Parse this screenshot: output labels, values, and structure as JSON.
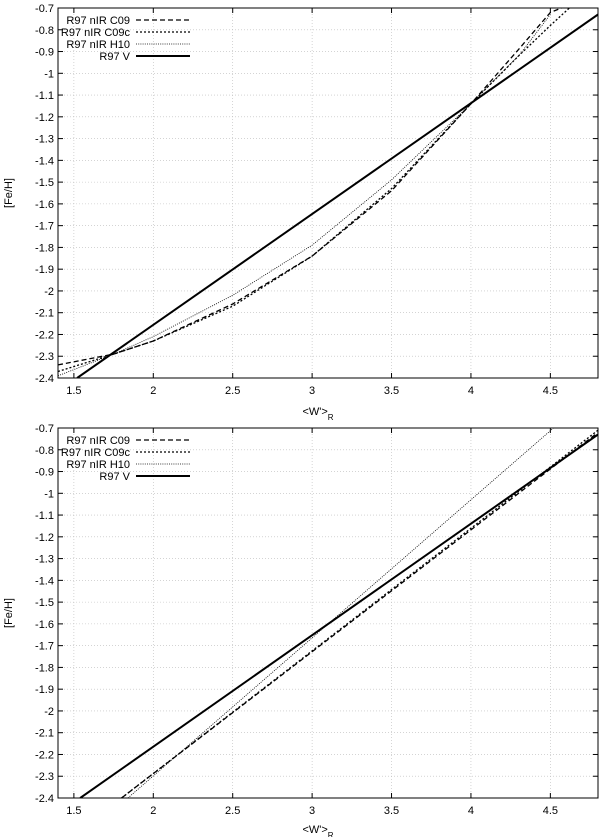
{
  "chart_data": [
    {
      "type": "line",
      "xlabel": "<W'>",
      "xlabel_sub": "R",
      "ylabel": "[Fe/H]",
      "xlim": [
        1.4,
        4.8
      ],
      "ylim": [
        -2.4,
        -0.7
      ],
      "xticks": [
        "1.5",
        "2",
        "2.5",
        "3",
        "3.5",
        "4",
        "4.5"
      ],
      "yticks": [
        "-0.7",
        "-0.8",
        "-0.9",
        "-1",
        "-1.1",
        "-1.2",
        "-1.3",
        "-1.4",
        "-1.5",
        "-1.6",
        "-1.7",
        "-1.8",
        "-1.9",
        "-2",
        "-2.1",
        "-2.2",
        "-2.3",
        "-2.4"
      ],
      "grid": true,
      "legend_position": "top-left",
      "series": [
        {
          "name": "R97 nIR C09",
          "style": "dashed",
          "x": [
            1.4,
            1.75,
            2.0,
            2.5,
            3.0,
            3.5,
            4.0,
            4.3,
            4.5,
            4.57
          ],
          "y": [
            -2.34,
            -2.29,
            -2.23,
            -2.06,
            -1.84,
            -1.54,
            -1.14,
            -0.89,
            -0.72,
            -0.7
          ]
        },
        {
          "name": "R97 nIR C09c",
          "style": "dotted",
          "x": [
            1.4,
            1.75,
            2.0,
            2.5,
            3.0,
            3.5,
            4.0,
            4.3,
            4.5,
            4.62
          ],
          "y": [
            -2.37,
            -2.29,
            -2.23,
            -2.07,
            -1.84,
            -1.53,
            -1.14,
            -0.92,
            -0.78,
            -0.7
          ]
        },
        {
          "name": "R97 nIR H10",
          "style": "dotted-thin",
          "x": [
            1.4,
            1.75,
            2.0,
            2.5,
            3.0,
            3.5,
            4.0,
            4.3,
            4.5
          ],
          "y": [
            -2.39,
            -2.29,
            -2.21,
            -2.02,
            -1.79,
            -1.49,
            -1.14,
            -0.92,
            -0.73
          ]
        },
        {
          "name": "R97 V",
          "style": "solid",
          "x": [
            1.52,
            4.8
          ],
          "y": [
            -2.4,
            -0.73
          ]
        }
      ]
    },
    {
      "type": "line",
      "xlabel": "<W'>",
      "xlabel_sub": "R",
      "ylabel": "[Fe/H]",
      "xlim": [
        1.4,
        4.8
      ],
      "ylim": [
        -2.4,
        -0.7
      ],
      "xticks": [
        "1.5",
        "2",
        "2.5",
        "3",
        "3.5",
        "4",
        "4.5"
      ],
      "yticks": [
        "-0.7",
        "-0.8",
        "-0.9",
        "-1",
        "-1.1",
        "-1.2",
        "-1.3",
        "-1.4",
        "-1.5",
        "-1.6",
        "-1.7",
        "-1.8",
        "-1.9",
        "-2",
        "-2.1",
        "-2.2",
        "-2.3",
        "-2.4"
      ],
      "grid": true,
      "legend_position": "top-left",
      "series": [
        {
          "name": "R97 nIR C09",
          "style": "dashed",
          "x": [
            1.8,
            4.8
          ],
          "y": [
            -2.4,
            -0.72
          ]
        },
        {
          "name": "R97 nIR C09c",
          "style": "dotted",
          "x": [
            1.8,
            4.8
          ],
          "y": [
            -2.4,
            -0.71
          ]
        },
        {
          "name": "R97 nIR H10",
          "style": "dotted-thin",
          "x": [
            1.84,
            4.52
          ],
          "y": [
            -2.4,
            -0.7
          ]
        },
        {
          "name": "R97 V",
          "style": "solid",
          "x": [
            1.54,
            4.8
          ],
          "y": [
            -2.4,
            -0.73
          ]
        }
      ]
    }
  ]
}
